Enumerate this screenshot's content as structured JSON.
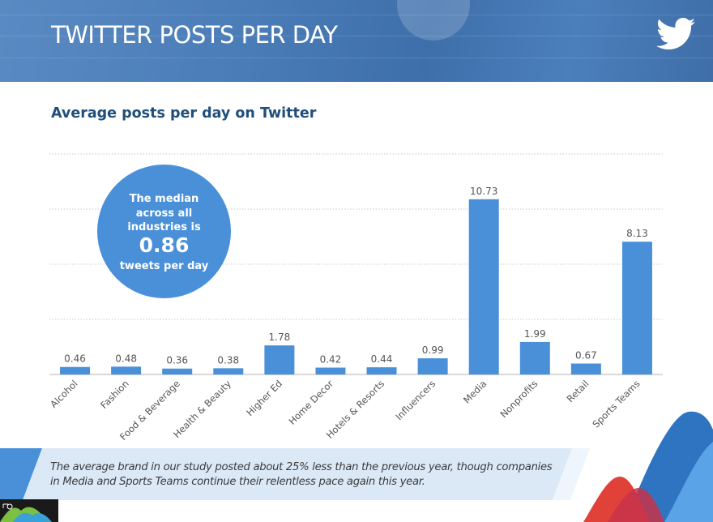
{
  "header": {
    "title": "TWITTER POSTS PER DAY",
    "logo_icon": "twitter-bird-icon"
  },
  "callout": {
    "line1": "The median",
    "line2": "across all",
    "line3": "industries is",
    "value": "0.86",
    "line4": "tweets per day"
  },
  "footer": {
    "note_line1": "The average brand in our study posted about 25% less than the previous year, though companies",
    "note_line2": "in Media and Sports Teams continue their relentless pace again this year."
  },
  "colors": {
    "bar": "#4a90d9",
    "title": "#1f4e7a",
    "banner": "#4a7cb8",
    "note_band": "#dbe9f7"
  },
  "chart_data": {
    "type": "bar",
    "title": "Average posts per day on Twitter",
    "xlabel": "",
    "ylabel": "",
    "ylim": [
      0,
      13.5
    ],
    "grid": true,
    "categories": [
      "Alcohol",
      "Fashion",
      "Food & Beverage",
      "Health & Beauty",
      "Higher Ed",
      "Home Decor",
      "Hotels & Resorts",
      "Influencers",
      "Media",
      "Nonprofits",
      "Retail",
      "Sports Teams"
    ],
    "values": [
      0.46,
      0.48,
      0.36,
      0.38,
      1.78,
      0.42,
      0.44,
      0.99,
      10.73,
      1.99,
      0.67,
      8.13
    ],
    "value_labels": [
      "0.46",
      "0.48",
      "0.36",
      "0.38",
      "1.78",
      "0.42",
      "0.44",
      "0.99",
      "10.73",
      "1.99",
      "0.67",
      "8.13"
    ]
  }
}
